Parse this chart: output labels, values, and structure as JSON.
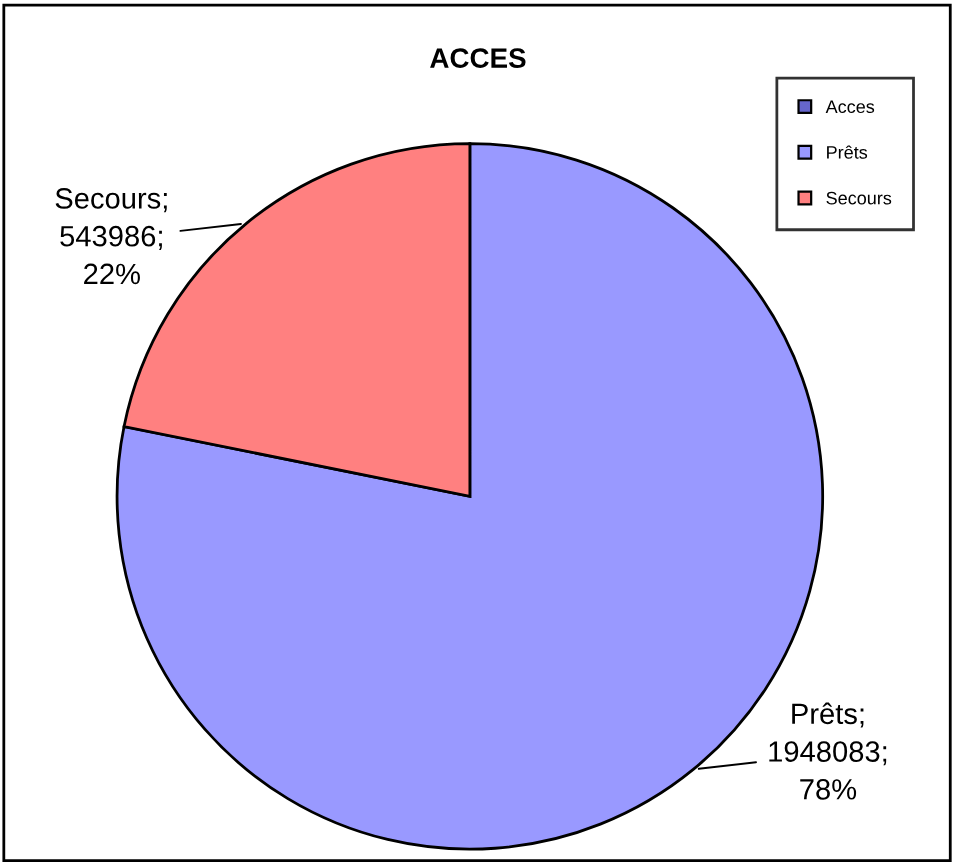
{
  "chart_data": {
    "type": "pie",
    "title": "ACCES",
    "categories": [
      "Acces",
      "Prêts",
      "Secours"
    ],
    "values": [
      0,
      1948083,
      543986
    ],
    "colors": [
      "#6666cc",
      "#9999ff",
      "#ff8080"
    ],
    "value_labels": [
      null,
      "Prêts;\n1948083;\n78%",
      "Secours;\n543986;\n22%"
    ],
    "legend": "top right"
  }
}
